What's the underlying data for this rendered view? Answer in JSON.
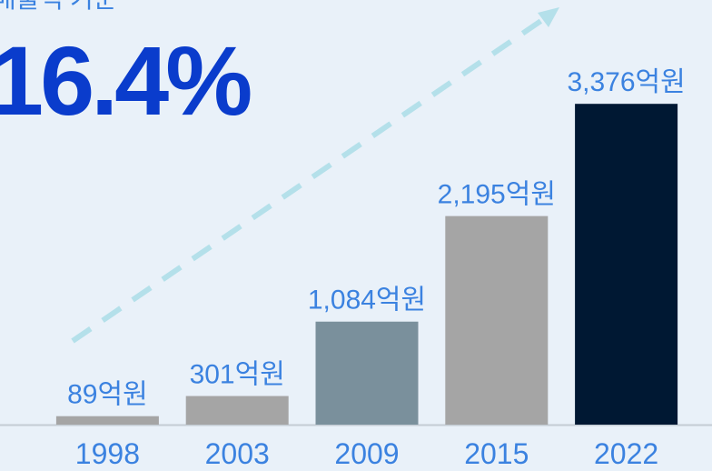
{
  "chart_data": {
    "type": "bar",
    "subtitle": "매출액 기준",
    "title": "16.4%",
    "categories": [
      "1998",
      "2003",
      "2009",
      "2015",
      "2022"
    ],
    "values": [
      89,
      301,
      1084,
      2195,
      3376
    ],
    "value_labels": [
      "89억원",
      "301억원",
      "1,084억원",
      "2,195억원",
      "3,376억원"
    ],
    "colors": [
      "#a5a5a5",
      "#a5a5a5",
      "#7a909c",
      "#a5a5a5",
      "#001833"
    ],
    "ylim": [
      0,
      4000
    ]
  }
}
